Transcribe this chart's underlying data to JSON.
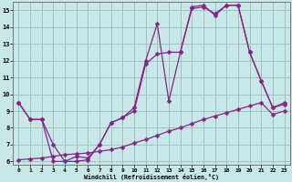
{
  "bg_color": "#c8e8e8",
  "line_color": "#882288",
  "grid_color": "#99bbbb",
  "xlim_min": -0.5,
  "xlim_max": 23.5,
  "ylim_min": 5.8,
  "ylim_max": 15.5,
  "xticks": [
    0,
    1,
    2,
    3,
    4,
    5,
    6,
    7,
    8,
    9,
    10,
    11,
    12,
    13,
    14,
    15,
    16,
    17,
    18,
    19,
    20,
    21,
    22,
    23
  ],
  "yticks": [
    6,
    7,
    8,
    9,
    10,
    11,
    12,
    13,
    14,
    15
  ],
  "xlabel": "Windchill (Refroidissement éolien,°C)",
  "curve1_x": [
    0,
    1,
    2,
    3,
    4,
    5,
    6,
    7,
    8,
    9,
    10,
    11,
    12,
    13,
    14,
    15,
    16,
    17,
    18,
    19,
    20,
    21,
    22,
    23
  ],
  "curve1_y": [
    9.5,
    8.5,
    8.5,
    7.0,
    6.0,
    6.0,
    6.1,
    7.0,
    8.3,
    8.6,
    9.2,
    12.0,
    14.2,
    9.6,
    12.5,
    15.2,
    15.3,
    14.7,
    15.3,
    15.3,
    12.5,
    10.8,
    9.2,
    9.5
  ],
  "curve2_x": [
    0,
    1,
    2,
    3,
    4,
    5,
    6,
    7,
    8,
    9,
    10,
    11,
    12,
    13,
    14,
    15,
    16,
    17,
    18,
    19,
    20,
    21,
    22,
    23
  ],
  "curve2_y": [
    9.5,
    8.5,
    8.5,
    6.0,
    6.0,
    6.3,
    6.2,
    7.0,
    8.3,
    8.6,
    9.0,
    11.8,
    12.4,
    12.5,
    12.5,
    15.1,
    15.2,
    14.8,
    15.3,
    15.3,
    12.5,
    10.8,
    9.2,
    9.4
  ],
  "curve3_x": [
    0,
    1,
    2,
    3,
    4,
    5,
    6,
    7,
    8,
    9,
    10,
    11,
    12,
    13,
    14,
    15,
    16,
    17,
    18,
    19,
    20,
    21,
    22,
    23
  ],
  "curve3_y": [
    6.1,
    6.15,
    6.2,
    6.3,
    6.4,
    6.45,
    6.5,
    6.6,
    6.7,
    6.85,
    7.1,
    7.3,
    7.55,
    7.8,
    8.0,
    8.25,
    8.5,
    8.7,
    8.9,
    9.1,
    9.3,
    9.5,
    8.8,
    9.0
  ],
  "markersize": 2.5,
  "linewidth": 0.9
}
